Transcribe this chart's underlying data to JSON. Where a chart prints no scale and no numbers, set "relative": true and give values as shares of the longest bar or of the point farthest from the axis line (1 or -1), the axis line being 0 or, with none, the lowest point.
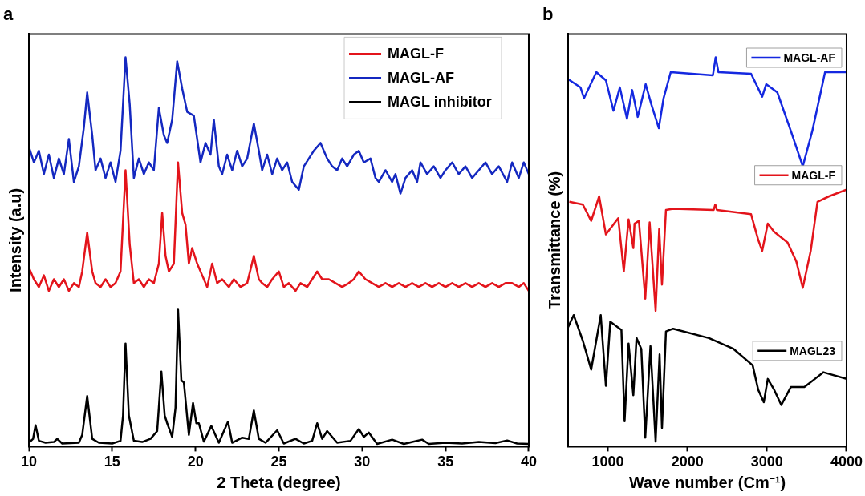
{
  "chart_data": [
    {
      "type": "line",
      "title": "a",
      "xlabel": "2 Theta (degree)",
      "ylabel": "Intensity (a.u)",
      "relative": true,
      "xlim": [
        10,
        40
      ],
      "xticks": [
        10,
        15,
        20,
        25,
        30,
        35,
        40
      ],
      "legend": "top right",
      "marker": "none",
      "line_style": "solid",
      "series": [
        {
          "name": "MAGL-F",
          "color": "#e3141b",
          "x": [
            10,
            10.3,
            10.6,
            10.9,
            11.2,
            11.5,
            11.8,
            12.1,
            12.4,
            12.7,
            13.0,
            13.2,
            13.5,
            13.8,
            14.0,
            14.3,
            14.6,
            14.9,
            15.2,
            15.5,
            15.8,
            16.05,
            16.3,
            16.6,
            16.9,
            17.2,
            17.5,
            17.8,
            18.0,
            18.2,
            18.4,
            18.7,
            18.95,
            19.2,
            19.4,
            19.6,
            19.8,
            20.1,
            20.4,
            20.7,
            21.0,
            21.3,
            21.6,
            22.0,
            22.3,
            22.7,
            23.1,
            23.5,
            23.8,
            24.0,
            24.3,
            24.6,
            25.0,
            25.3,
            25.6,
            26.0,
            26.3,
            26.7,
            27.0,
            27.3,
            27.6,
            28.0,
            28.4,
            28.8,
            29.2,
            29.5,
            29.8,
            30.2,
            30.6,
            31.0,
            31.4,
            31.8,
            32.2,
            32.6,
            33.0,
            33.4,
            33.8,
            34.2,
            34.6,
            35.0,
            35.4,
            35.8,
            36.2,
            36.6,
            37.0,
            37.4,
            37.8,
            38.2,
            38.6,
            39.0,
            39.4,
            39.7,
            40
          ],
          "values": [
            0.46,
            0.43,
            0.41,
            0.44,
            0.4,
            0.43,
            0.41,
            0.43,
            0.4,
            0.42,
            0.41,
            0.45,
            0.55,
            0.45,
            0.42,
            0.41,
            0.43,
            0.41,
            0.42,
            0.45,
            0.71,
            0.52,
            0.42,
            0.43,
            0.41,
            0.43,
            0.42,
            0.47,
            0.6,
            0.49,
            0.45,
            0.47,
            0.73,
            0.6,
            0.57,
            0.47,
            0.51,
            0.47,
            0.44,
            0.41,
            0.47,
            0.42,
            0.43,
            0.41,
            0.43,
            0.41,
            0.42,
            0.49,
            0.43,
            0.42,
            0.41,
            0.43,
            0.45,
            0.41,
            0.42,
            0.4,
            0.42,
            0.41,
            0.43,
            0.45,
            0.43,
            0.43,
            0.42,
            0.41,
            0.42,
            0.43,
            0.45,
            0.43,
            0.42,
            0.41,
            0.42,
            0.41,
            0.42,
            0.41,
            0.42,
            0.41,
            0.42,
            0.41,
            0.42,
            0.41,
            0.42,
            0.41,
            0.42,
            0.41,
            0.42,
            0.41,
            0.42,
            0.41,
            0.42,
            0.42,
            0.41,
            0.42,
            0.4
          ]
        },
        {
          "name": "MAGL-AF",
          "color": "#1428c0",
          "x": [
            10,
            10.3,
            10.6,
            10.9,
            11.2,
            11.5,
            11.8,
            12.1,
            12.4,
            12.7,
            13.0,
            13.3,
            13.5,
            13.8,
            14.0,
            14.3,
            14.6,
            14.9,
            15.2,
            15.5,
            15.8,
            16.05,
            16.3,
            16.6,
            16.9,
            17.2,
            17.5,
            17.8,
            18.1,
            18.3,
            18.6,
            18.9,
            19.2,
            19.5,
            19.9,
            20.3,
            20.6,
            20.9,
            21.1,
            21.4,
            21.6,
            21.9,
            22.2,
            22.5,
            22.8,
            23.1,
            23.5,
            23.8,
            24.0,
            24.3,
            24.6,
            24.9,
            25.2,
            25.5,
            25.8,
            26.2,
            26.5,
            26.8,
            27.1,
            27.5,
            27.9,
            28.2,
            28.5,
            28.8,
            29.1,
            29.5,
            29.8,
            30.1,
            30.5,
            30.8,
            31.0,
            31.4,
            31.8,
            32.0,
            32.3,
            32.6,
            33.0,
            33.3,
            33.5,
            33.9,
            34.3,
            34.7,
            35.0,
            35.4,
            35.8,
            36.2,
            36.6,
            37.0,
            37.4,
            37.8,
            38.2,
            38.7,
            39.0,
            39.4,
            39.7,
            40
          ],
          "values": [
            0.77,
            0.73,
            0.76,
            0.7,
            0.75,
            0.69,
            0.74,
            0.7,
            0.79,
            0.68,
            0.72,
            0.82,
            0.91,
            0.8,
            0.71,
            0.74,
            0.69,
            0.73,
            0.68,
            0.76,
            1.0,
            0.88,
            0.69,
            0.74,
            0.7,
            0.73,
            0.71,
            0.87,
            0.8,
            0.78,
            0.84,
            0.99,
            0.92,
            0.86,
            0.85,
            0.73,
            0.78,
            0.75,
            0.84,
            0.72,
            0.7,
            0.75,
            0.71,
            0.76,
            0.72,
            0.74,
            0.83,
            0.76,
            0.71,
            0.75,
            0.7,
            0.74,
            0.71,
            0.73,
            0.68,
            0.66,
            0.72,
            0.74,
            0.76,
            0.78,
            0.74,
            0.72,
            0.71,
            0.74,
            0.72,
            0.75,
            0.76,
            0.73,
            0.74,
            0.69,
            0.68,
            0.71,
            0.68,
            0.7,
            0.65,
            0.69,
            0.71,
            0.68,
            0.73,
            0.7,
            0.72,
            0.69,
            0.71,
            0.73,
            0.7,
            0.72,
            0.69,
            0.71,
            0.73,
            0.7,
            0.72,
            0.68,
            0.73,
            0.69,
            0.73,
            0.7
          ]
        },
        {
          "name": "MAGL inhibitor",
          "color": "#000000",
          "x": [
            10,
            10.25,
            10.4,
            10.6,
            11,
            11.5,
            11.7,
            12,
            13,
            13.2,
            13.5,
            13.8,
            14.2,
            15,
            15.5,
            15.65,
            15.8,
            16.0,
            16.3,
            16.8,
            17.3,
            17.7,
            17.95,
            18.15,
            18.3,
            18.6,
            18.8,
            18.95,
            19.15,
            19.3,
            19.6,
            19.85,
            20.05,
            20.2,
            20.5,
            20.95,
            21.4,
            21.95,
            22.2,
            22.8,
            23.2,
            23.5,
            23.8,
            24.2,
            24.9,
            25.3,
            26,
            26.5,
            27.0,
            27.3,
            27.6,
            27.9,
            28.5,
            29.3,
            29.8,
            30.1,
            30.4,
            30.9,
            31.8,
            32.5,
            33.6,
            34,
            35,
            36,
            37,
            38,
            38.7,
            39.3,
            40
          ],
          "values": [
            0.01,
            0.02,
            0.055,
            0.015,
            0.01,
            0.012,
            0.02,
            0.008,
            0.01,
            0.03,
            0.13,
            0.02,
            0.01,
            0.008,
            0.015,
            0.08,
            0.265,
            0.08,
            0.015,
            0.012,
            0.02,
            0.04,
            0.193,
            0.08,
            0.06,
            0.025,
            0.1,
            0.352,
            0.17,
            0.165,
            0.03,
            0.112,
            0.06,
            0.06,
            0.013,
            0.053,
            0.01,
            0.064,
            0.01,
            0.023,
            0.02,
            0.093,
            0.02,
            0.01,
            0.042,
            0.008,
            0.02,
            0.008,
            0.015,
            0.06,
            0.02,
            0.04,
            0.01,
            0.015,
            0.045,
            0.025,
            0.036,
            0.007,
            0.018,
            0.007,
            0.018,
            0.007,
            0.01,
            0.008,
            0.012,
            0.009,
            0.016,
            0.008,
            0.007
          ]
        }
      ]
    },
    {
      "type": "line",
      "title": "b",
      "xlabel": "Wave number (Cm⁻¹)",
      "ylabel": "Transmittance (%)",
      "relative": true,
      "xlim": [
        500,
        4000
      ],
      "xticks": [
        1000,
        2000,
        3000,
        4000
      ],
      "legend": "right",
      "marker": "none",
      "line_style": "solid",
      "series": [
        {
          "name": "MAGL-AF",
          "color": "#1428e0",
          "x": [
            500,
            655,
            700,
            855,
            975,
            1070,
            1150,
            1240,
            1305,
            1375,
            1475,
            1545,
            1640,
            1700,
            1790,
            2320,
            2355,
            2390,
            2800,
            2940,
            2990,
            3130,
            3300,
            3450,
            3570,
            3730,
            4000
          ],
          "values": [
            0.944,
            0.923,
            0.895,
            0.962,
            0.941,
            0.863,
            0.923,
            0.842,
            0.916,
            0.847,
            0.931,
            0.88,
            0.818,
            0.895,
            0.962,
            0.954,
            1.0,
            0.962,
            0.958,
            0.899,
            0.931,
            0.91,
            0.811,
            0.72,
            0.811,
            0.962,
            0.962
          ]
        },
        {
          "name": "MAGL-F",
          "color": "#e3141b",
          "x": [
            515,
            685,
            790,
            890,
            975,
            1130,
            1200,
            1260,
            1320,
            1335,
            1390,
            1470,
            1525,
            1600,
            1645,
            1680,
            1730,
            1820,
            2330,
            2350,
            2370,
            2800,
            2890,
            2940,
            3010,
            3090,
            3260,
            3370,
            3450,
            3550,
            3635,
            3780,
            4000
          ],
          "values": [
            0.629,
            0.622,
            0.58,
            0.643,
            0.545,
            0.587,
            0.45,
            0.584,
            0.51,
            0.573,
            0.58,
            0.38,
            0.576,
            0.349,
            0.559,
            0.416,
            0.608,
            0.611,
            0.608,
            0.622,
            0.608,
            0.597,
            0.531,
            0.503,
            0.573,
            0.552,
            0.524,
            0.475,
            0.408,
            0.503,
            0.629,
            0.643,
            0.66
          ]
        },
        {
          "name": "MAGL23",
          "color": "#000000",
          "x": [
            500,
            570,
            685,
            790,
            910,
            975,
            1030,
            1170,
            1210,
            1260,
            1320,
            1360,
            1420,
            1470,
            1535,
            1600,
            1650,
            1680,
            1730,
            1820,
            2270,
            2580,
            2820,
            2890,
            2960,
            3010,
            3090,
            3180,
            3300,
            3470,
            3710,
            4000
          ],
          "values": [
            0.307,
            0.338,
            0.272,
            0.198,
            0.338,
            0.156,
            0.321,
            0.3,
            0.065,
            0.265,
            0.132,
            0.279,
            0.251,
            0.023,
            0.258,
            0.013,
            0.237,
            0.048,
            0.296,
            0.303,
            0.279,
            0.251,
            0.209,
            0.146,
            0.114,
            0.174,
            0.146,
            0.107,
            0.153,
            0.153,
            0.191,
            0.174
          ]
        }
      ]
    }
  ]
}
